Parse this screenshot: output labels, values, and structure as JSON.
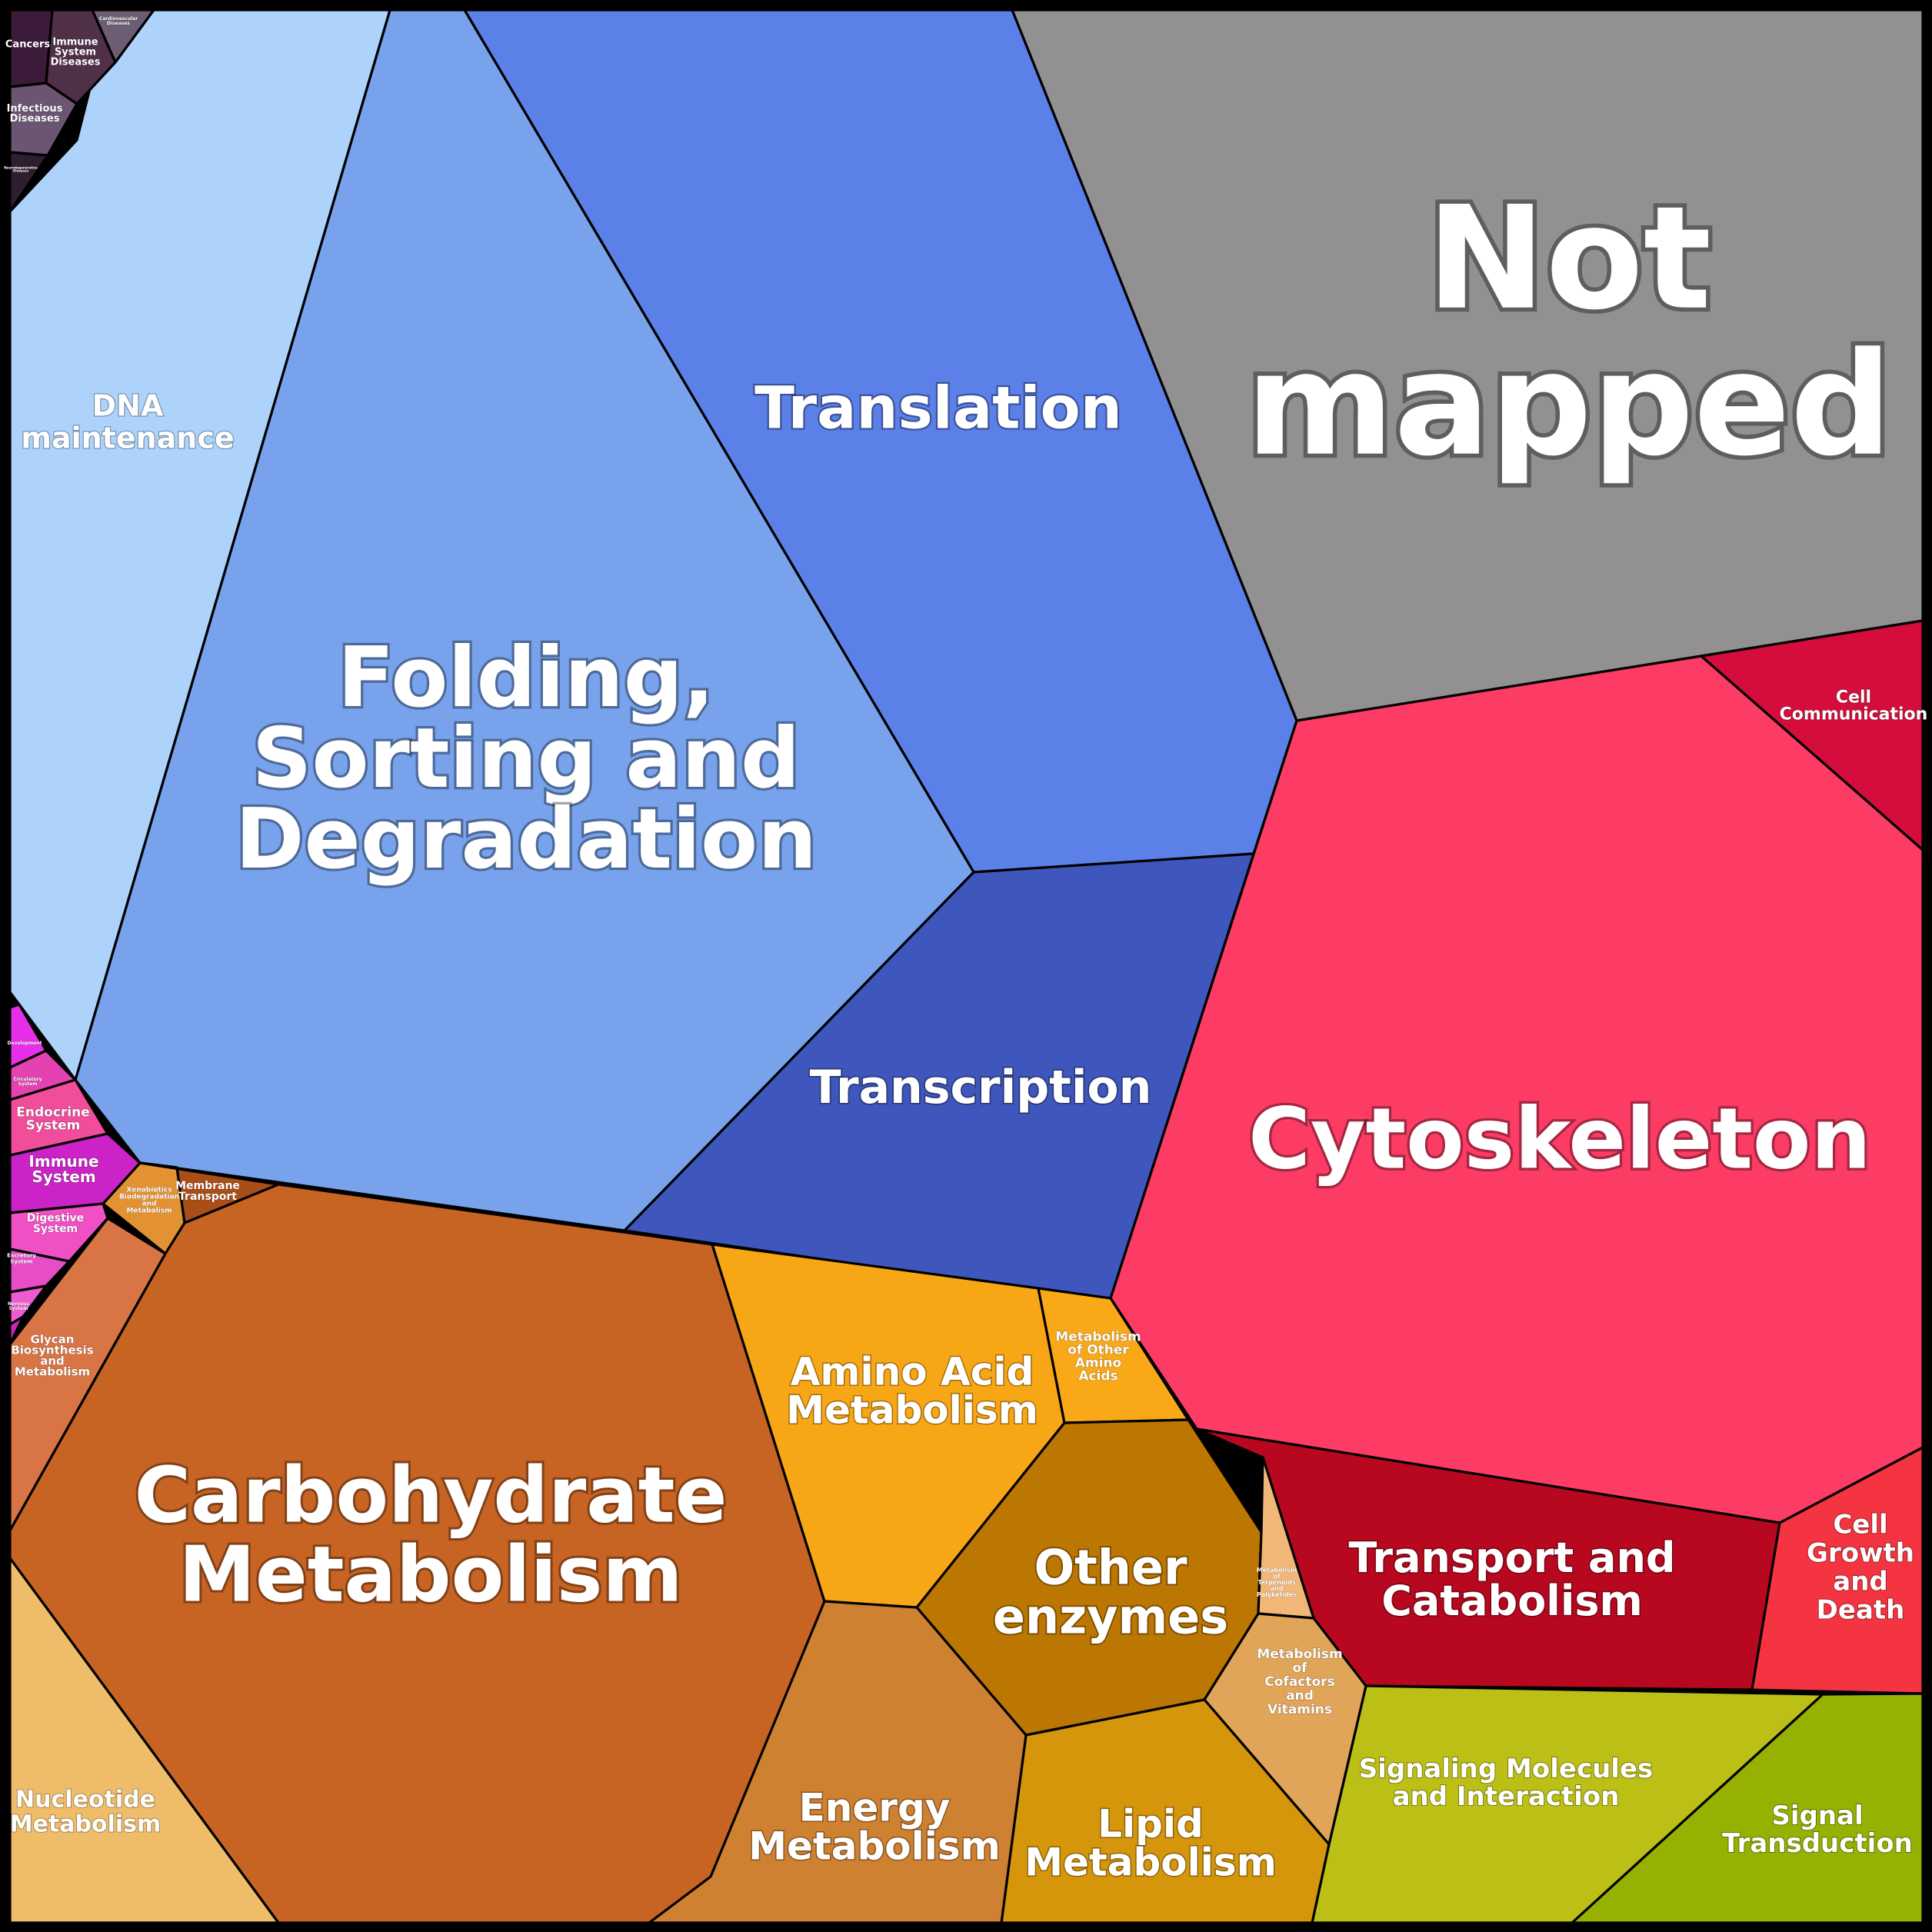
{
  "regions": [
    {
      "id": "not-mapped",
      "lines": [
        "Not",
        "mapped"
      ],
      "color": "#929090"
    },
    {
      "id": "translation",
      "lines": [
        "Translation"
      ],
      "color": "#5b80e8"
    },
    {
      "id": "folding",
      "lines": [
        "Folding,",
        "Sorting and",
        "Degradation"
      ],
      "color": "#78a3ec"
    },
    {
      "id": "dna-maintenance",
      "lines": [
        "DNA",
        "maintenance"
      ],
      "color": "#aed3fb"
    },
    {
      "id": "transcription",
      "lines": [
        "Transcription"
      ],
      "color": "#3f57bc"
    },
    {
      "id": "cytoskeleton",
      "lines": [
        "Cytoskeleton"
      ],
      "color": "#fc3c65"
    },
    {
      "id": "cell-communication",
      "lines": [
        "Cell",
        "Communication"
      ],
      "color": "#d40d3c"
    },
    {
      "id": "transport-catabolism",
      "lines": [
        "Transport and",
        "Catabolism"
      ],
      "color": "#b8081f"
    },
    {
      "id": "cell-growth-death",
      "lines": [
        "Cell",
        "Growth",
        "and",
        "Death"
      ],
      "color": "#f53441"
    },
    {
      "id": "signaling-molecules",
      "lines": [
        "Signaling Molecules",
        "and Interaction"
      ],
      "color": "#bcbf16"
    },
    {
      "id": "signal-transduction",
      "lines": [
        "Signal",
        "Transduction"
      ],
      "color": "#97b102"
    },
    {
      "id": "carbohydrate",
      "lines": [
        "Carbohydrate",
        "Metabolism"
      ],
      "color": "#c76424"
    },
    {
      "id": "amino-acid",
      "lines": [
        "Amino Acid",
        "Metabolism"
      ],
      "color": "#f7a616"
    },
    {
      "id": "other-amino-acids",
      "lines": [
        "Metabolism",
        "of Other",
        "Amino",
        "Acids"
      ],
      "color": "#f9a818"
    },
    {
      "id": "other-enzymes",
      "lines": [
        "Other",
        "enzymes"
      ],
      "color": "#bc7602"
    },
    {
      "id": "terpenoids",
      "lines": [
        "Metabolism",
        "of",
        "Terpenoids",
        "and",
        "Polyketides"
      ],
      "color": "#f1b777"
    },
    {
      "id": "cofactors",
      "lines": [
        "Metabolism",
        "of",
        "Cofactors",
        "and",
        "Vitamins"
      ],
      "color": "#e0a558"
    },
    {
      "id": "lipid",
      "lines": [
        "Lipid",
        "Metabolism"
      ],
      "color": "#d5960c"
    },
    {
      "id": "energy",
      "lines": [
        "Energy",
        "Metabolism"
      ],
      "color": "#cf8132"
    },
    {
      "id": "nucleotide",
      "lines": [
        "Nucleotide",
        "Metabolism"
      ],
      "color": "#efbd6a"
    },
    {
      "id": "glycan",
      "lines": [
        "Glycan",
        "Biosynthesis",
        "and",
        "Metabolism"
      ],
      "color": "#d97444"
    },
    {
      "id": "xenobiotics",
      "lines": [
        "Xenobiotics",
        "Biodegradation",
        "and",
        "Metabolism"
      ],
      "color": "#e39233"
    },
    {
      "id": "membrane-transport",
      "lines": [
        "Membrane",
        "Transport"
      ],
      "color": "#a94e17"
    },
    {
      "id": "development",
      "lines": [
        "Development"
      ],
      "color": "#e72fe9"
    },
    {
      "id": "circulatory",
      "lines": [
        "Circulatory",
        "System"
      ],
      "color": "#e342b0"
    },
    {
      "id": "endocrine",
      "lines": [
        "Endocrine",
        "System"
      ],
      "color": "#f04d9a"
    },
    {
      "id": "immune-system",
      "lines": [
        "Immune",
        "System"
      ],
      "color": "#cb23c7"
    },
    {
      "id": "digestive",
      "lines": [
        "Digestive",
        "System"
      ],
      "color": "#f14fc4"
    },
    {
      "id": "excretory",
      "lines": [
        "Excretory",
        "System"
      ],
      "color": "#e64dc7"
    },
    {
      "id": "nervous",
      "lines": [
        "Nervous",
        "System"
      ],
      "color": "#f05ad0"
    },
    {
      "id": "organismal-extra",
      "lines": [],
      "color": "#c629b8"
    },
    {
      "id": "cancers",
      "lines": [
        "Cancers"
      ],
      "color": "#3c1b3a"
    },
    {
      "id": "immune-diseases",
      "lines": [
        "Immune",
        "System",
        "Diseases"
      ],
      "color": "#503049"
    },
    {
      "id": "cardiovascular",
      "lines": [
        "Cardiovascular",
        "Diseases"
      ],
      "color": "#6d5d72"
    },
    {
      "id": "infectious",
      "lines": [
        "Infectious",
        "Diseases"
      ],
      "color": "#6b5572"
    },
    {
      "id": "neurodegenerative",
      "lines": [
        "Neurodegenerative",
        "Diseases"
      ],
      "color": "#2f1e2f"
    }
  ]
}
